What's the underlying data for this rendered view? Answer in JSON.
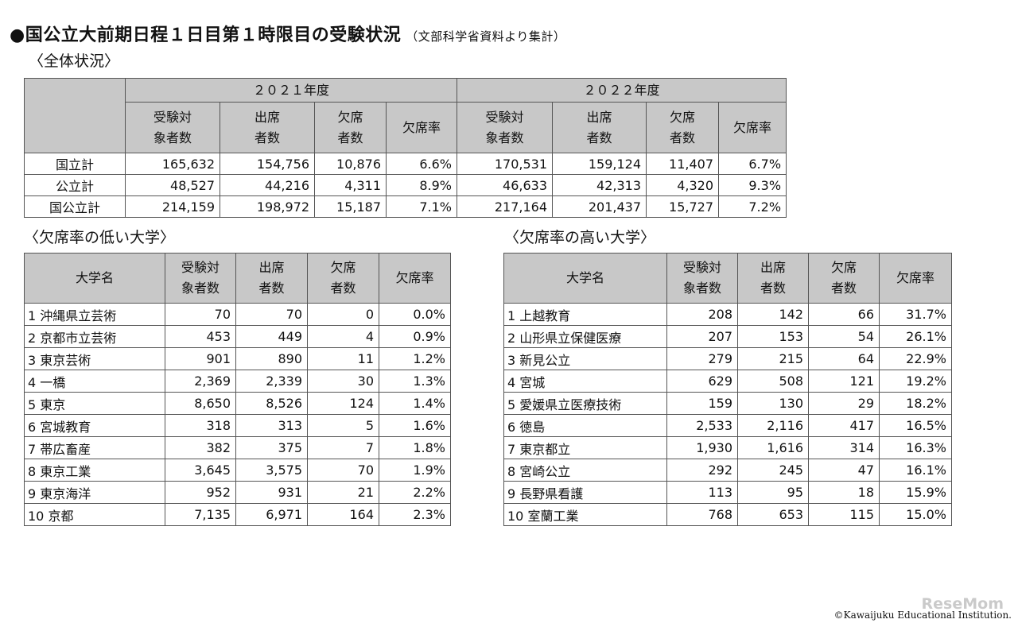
{
  "title": "●国公立大前期日程１日目第１時限目の受験状況",
  "title_note": "（文部科学省資料より集計）",
  "overall": {
    "heading": "〈全体状況〉",
    "years": [
      "２０２１年度",
      "２０２２年度"
    ],
    "columns": [
      [
        "受験対",
        "象者数"
      ],
      [
        "出席",
        "者数"
      ],
      [
        "欠席",
        "者数"
      ],
      [
        "欠席率",
        ""
      ]
    ],
    "rows": [
      {
        "label": "国立計",
        "y2021": [
          "165,632",
          "154,756",
          "10,876",
          "6.6%"
        ],
        "y2022": [
          "170,531",
          "159,124",
          "11,407",
          "6.7%"
        ]
      },
      {
        "label": "公立計",
        "y2021": [
          "48,527",
          "44,216",
          "4,311",
          "8.9%"
        ],
        "y2022": [
          "46,633",
          "42,313",
          "4,320",
          "9.3%"
        ]
      },
      {
        "label": "国公立計",
        "y2021": [
          "214,159",
          "198,972",
          "15,187",
          "7.1%"
        ],
        "y2022": [
          "217,164",
          "201,437",
          "15,727",
          "7.2%"
        ]
      }
    ]
  },
  "low": {
    "heading": "〈欠席率の低い大学〉",
    "columns": [
      "大学名",
      [
        "受験対",
        "象者数"
      ],
      [
        "出席",
        "者数"
      ],
      [
        "欠席",
        "者数"
      ],
      "欠席率"
    ],
    "rows": [
      [
        "1 沖縄県立芸術",
        "70",
        "70",
        "0",
        "0.0%"
      ],
      [
        "2 京都市立芸術",
        "453",
        "449",
        "4",
        "0.9%"
      ],
      [
        "3 東京芸術",
        "901",
        "890",
        "11",
        "1.2%"
      ],
      [
        "4 一橋",
        "2,369",
        "2,339",
        "30",
        "1.3%"
      ],
      [
        "5 東京",
        "8,650",
        "8,526",
        "124",
        "1.4%"
      ],
      [
        "6 宮城教育",
        "318",
        "313",
        "5",
        "1.6%"
      ],
      [
        "7 帯広畜産",
        "382",
        "375",
        "7",
        "1.8%"
      ],
      [
        "8 東京工業",
        "3,645",
        "3,575",
        "70",
        "1.9%"
      ],
      [
        "9 東京海洋",
        "952",
        "931",
        "21",
        "2.2%"
      ],
      [
        "10 京都",
        "7,135",
        "6,971",
        "164",
        "2.3%"
      ]
    ]
  },
  "high": {
    "heading": "〈欠席率の高い大学〉",
    "columns": [
      "大学名",
      [
        "受験対",
        "象者数"
      ],
      [
        "出席",
        "者数"
      ],
      [
        "欠席",
        "者数"
      ],
      "欠席率"
    ],
    "rows": [
      [
        "1 上越教育",
        "208",
        "142",
        "66",
        "31.7%"
      ],
      [
        "2 山形県立保健医療",
        "207",
        "153",
        "54",
        "26.1%"
      ],
      [
        "3 新見公立",
        "279",
        "215",
        "64",
        "22.9%"
      ],
      [
        "4 宮城",
        "629",
        "508",
        "121",
        "19.2%"
      ],
      [
        "5 愛媛県立医療技術",
        "159",
        "130",
        "29",
        "18.2%"
      ],
      [
        "6 徳島",
        "2,533",
        "2,116",
        "417",
        "16.5%"
      ],
      [
        "7 東京都立",
        "1,930",
        "1,616",
        "314",
        "16.3%"
      ],
      [
        "8 宮崎公立",
        "292",
        "245",
        "47",
        "16.1%"
      ],
      [
        "9 長野県看護",
        "113",
        "95",
        "18",
        "15.9%"
      ],
      [
        "10 室蘭工業",
        "768",
        "653",
        "115",
        "15.0%"
      ]
    ]
  },
  "footer": "©Kawaijuku Educational Institution.",
  "watermark": "ReseMom"
}
